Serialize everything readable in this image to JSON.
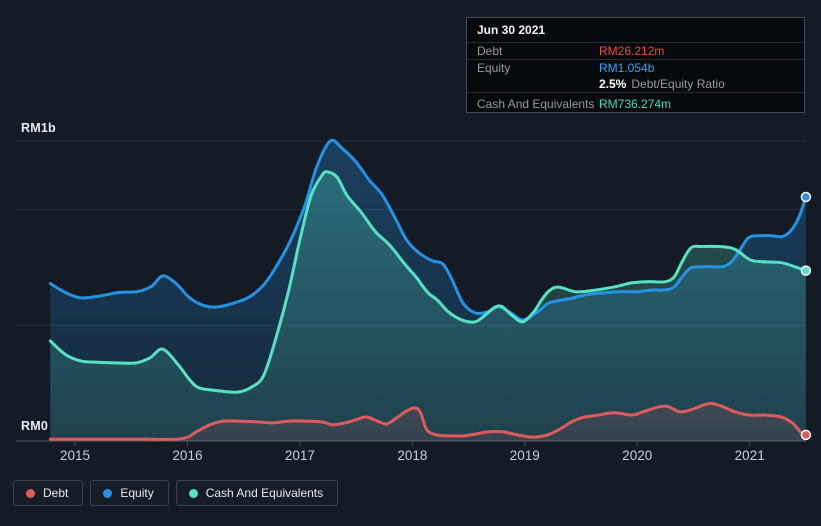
{
  "colors": {
    "background": "#151b24",
    "grid": "#272e37",
    "axis": "#454d57",
    "tick_text": "#c9cfd7",
    "debt": "#df5a5a",
    "equity": "#2493e6",
    "cash": "#56e2c4",
    "debt_value": "#f04747",
    "equity_value": "#2ba6f6",
    "cash_value": "#3eddbf",
    "tooltip_label": "#949ba4",
    "ratio_value": "#ffffff"
  },
  "tooltip": {
    "date": "Jun 30 2021",
    "debt": {
      "label": "Debt",
      "value": "RM26.212m"
    },
    "equity": {
      "label": "Equity",
      "value": "RM1.054b"
    },
    "ratio": {
      "value": "2.5%",
      "label": "Debt/Equity Ratio"
    },
    "cash": {
      "label": "Cash And Equivalents",
      "value": "RM736.274m"
    }
  },
  "legend": {
    "items": [
      {
        "label": "Debt",
        "color_key": "debt"
      },
      {
        "label": "Equity",
        "color_key": "equity"
      },
      {
        "label": "Cash And Equivalents",
        "color_key": "cash"
      }
    ]
  },
  "chart_data": {
    "type": "area",
    "currency": "RM",
    "unit": "millions",
    "y_axis": {
      "top_label": "RM1b",
      "bottom_label": "RM0",
      "gridlines_m": [
        500,
        1000
      ],
      "y_max_m": 1296
    },
    "x_ticks": [
      2015,
      2016,
      2017,
      2018,
      2019,
      2020,
      2021
    ],
    "x_range": [
      2014.78,
      2021.5
    ],
    "legend_position": "bottom-left",
    "series": [
      {
        "name": "Equity",
        "color_key": "equity",
        "end_value_label": "RM1.054b",
        "points": [
          [
            2014.78,
            680
          ],
          [
            2014.92,
            640
          ],
          [
            2015.05,
            618
          ],
          [
            2015.2,
            625
          ],
          [
            2015.4,
            642
          ],
          [
            2015.55,
            645
          ],
          [
            2015.68,
            668
          ],
          [
            2015.78,
            713
          ],
          [
            2015.9,
            680
          ],
          [
            2016.02,
            618
          ],
          [
            2016.16,
            583
          ],
          [
            2016.28,
            580
          ],
          [
            2016.42,
            597
          ],
          [
            2016.55,
            622
          ],
          [
            2016.68,
            675
          ],
          [
            2016.8,
            762
          ],
          [
            2016.92,
            870
          ],
          [
            2017.05,
            1025
          ],
          [
            2017.15,
            1185
          ],
          [
            2017.27,
            1296
          ],
          [
            2017.38,
            1262
          ],
          [
            2017.5,
            1205
          ],
          [
            2017.62,
            1125
          ],
          [
            2017.73,
            1065
          ],
          [
            2017.85,
            960
          ],
          [
            2017.95,
            868
          ],
          [
            2018.06,
            812
          ],
          [
            2018.18,
            778
          ],
          [
            2018.27,
            765
          ],
          [
            2018.35,
            700
          ],
          [
            2018.45,
            596
          ],
          [
            2018.56,
            553
          ],
          [
            2018.67,
            558
          ],
          [
            2018.77,
            580
          ],
          [
            2018.88,
            552
          ],
          [
            2018.98,
            523
          ],
          [
            2019.1,
            553
          ],
          [
            2019.22,
            597
          ],
          [
            2019.4,
            615
          ],
          [
            2019.55,
            632
          ],
          [
            2019.7,
            640
          ],
          [
            2019.85,
            645
          ],
          [
            2020.0,
            645
          ],
          [
            2020.12,
            652
          ],
          [
            2020.25,
            653
          ],
          [
            2020.33,
            666
          ],
          [
            2020.4,
            710
          ],
          [
            2020.48,
            748
          ],
          [
            2020.6,
            753
          ],
          [
            2020.75,
            753
          ],
          [
            2020.83,
            770
          ],
          [
            2020.9,
            815
          ],
          [
            2020.99,
            878
          ],
          [
            2021.1,
            887
          ],
          [
            2021.2,
            887
          ],
          [
            2021.28,
            882
          ],
          [
            2021.35,
            900
          ],
          [
            2021.43,
            958
          ],
          [
            2021.5,
            1054
          ]
        ]
      },
      {
        "name": "Cash And Equivalents",
        "color_key": "cash",
        "end_value_label": "RM736.274m",
        "points": [
          [
            2014.78,
            432
          ],
          [
            2014.92,
            372
          ],
          [
            2015.05,
            346
          ],
          [
            2015.2,
            340
          ],
          [
            2015.4,
            337
          ],
          [
            2015.55,
            338
          ],
          [
            2015.67,
            360
          ],
          [
            2015.78,
            397
          ],
          [
            2015.92,
            328
          ],
          [
            2016.02,
            264
          ],
          [
            2016.1,
            230
          ],
          [
            2016.22,
            220
          ],
          [
            2016.35,
            213
          ],
          [
            2016.46,
            212
          ],
          [
            2016.57,
            233
          ],
          [
            2016.68,
            285
          ],
          [
            2016.8,
            467
          ],
          [
            2016.9,
            650
          ],
          [
            2017.0,
            870
          ],
          [
            2017.1,
            1060
          ],
          [
            2017.2,
            1150
          ],
          [
            2017.25,
            1162
          ],
          [
            2017.33,
            1140
          ],
          [
            2017.42,
            1060
          ],
          [
            2017.55,
            985
          ],
          [
            2017.67,
            905
          ],
          [
            2017.8,
            845
          ],
          [
            2017.94,
            760
          ],
          [
            2018.03,
            710
          ],
          [
            2018.14,
            640
          ],
          [
            2018.22,
            610
          ],
          [
            2018.32,
            558
          ],
          [
            2018.44,
            523
          ],
          [
            2018.56,
            515
          ],
          [
            2018.67,
            553
          ],
          [
            2018.74,
            580
          ],
          [
            2018.8,
            580
          ],
          [
            2018.88,
            545
          ],
          [
            2018.98,
            515
          ],
          [
            2019.08,
            558
          ],
          [
            2019.15,
            610
          ],
          [
            2019.22,
            650
          ],
          [
            2019.3,
            665
          ],
          [
            2019.45,
            645
          ],
          [
            2019.6,
            650
          ],
          [
            2019.8,
            666
          ],
          [
            2019.95,
            683
          ],
          [
            2020.1,
            688
          ],
          [
            2020.25,
            688
          ],
          [
            2020.33,
            710
          ],
          [
            2020.4,
            775
          ],
          [
            2020.48,
            835
          ],
          [
            2020.58,
            840
          ],
          [
            2020.78,
            838
          ],
          [
            2020.88,
            825
          ],
          [
            2021.0,
            783
          ],
          [
            2021.1,
            775
          ],
          [
            2021.28,
            770
          ],
          [
            2021.42,
            750
          ],
          [
            2021.5,
            736
          ]
        ]
      },
      {
        "name": "Debt",
        "color_key": "debt",
        "end_value_label": "RM26.212m",
        "points": [
          [
            2014.78,
            8
          ],
          [
            2015.2,
            8
          ],
          [
            2015.6,
            8
          ],
          [
            2015.95,
            10
          ],
          [
            2016.08,
            40
          ],
          [
            2016.2,
            70
          ],
          [
            2016.32,
            86
          ],
          [
            2016.46,
            86
          ],
          [
            2016.64,
            82
          ],
          [
            2016.76,
            78
          ],
          [
            2016.9,
            86
          ],
          [
            2017.04,
            86
          ],
          [
            2017.2,
            82
          ],
          [
            2017.29,
            70
          ],
          [
            2017.4,
            78
          ],
          [
            2017.5,
            92
          ],
          [
            2017.59,
            104
          ],
          [
            2017.69,
            86
          ],
          [
            2017.77,
            74
          ],
          [
            2017.86,
            100
          ],
          [
            2017.95,
            130
          ],
          [
            2018.02,
            143
          ],
          [
            2018.07,
            125
          ],
          [
            2018.13,
            48
          ],
          [
            2018.22,
            26
          ],
          [
            2018.35,
            22
          ],
          [
            2018.45,
            22
          ],
          [
            2018.56,
            30
          ],
          [
            2018.68,
            40
          ],
          [
            2018.8,
            40
          ],
          [
            2018.9,
            30
          ],
          [
            2018.98,
            22
          ],
          [
            2019.08,
            17
          ],
          [
            2019.2,
            26
          ],
          [
            2019.3,
            48
          ],
          [
            2019.4,
            78
          ],
          [
            2019.5,
            100
          ],
          [
            2019.65,
            112
          ],
          [
            2019.8,
            122
          ],
          [
            2019.95,
            112
          ],
          [
            2020.05,
            126
          ],
          [
            2020.2,
            148
          ],
          [
            2020.28,
            148
          ],
          [
            2020.38,
            126
          ],
          [
            2020.48,
            135
          ],
          [
            2020.62,
            160
          ],
          [
            2020.72,
            156
          ],
          [
            2020.87,
            126
          ],
          [
            2021.0,
            112
          ],
          [
            2021.14,
            112
          ],
          [
            2021.28,
            104
          ],
          [
            2021.38,
            78
          ],
          [
            2021.45,
            40
          ],
          [
            2021.5,
            26.212
          ]
        ]
      }
    ]
  }
}
